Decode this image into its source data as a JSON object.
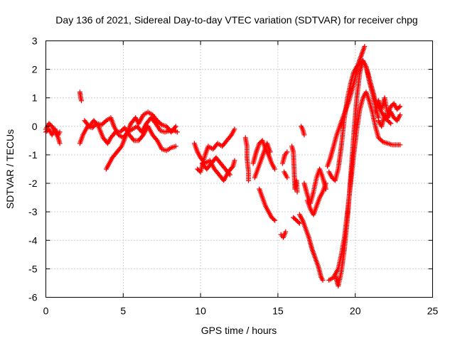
{
  "chart_data": {
    "type": "scatter",
    "title": "Day 136 of 2021, Sidereal Day-to-day VTEC variation (SDTVAR) for receiver chpg",
    "xlabel": "GPS time / hours",
    "ylabel": "SDTVAR / TECUs",
    "xlim": [
      0,
      25
    ],
    "ylim": [
      -6,
      3
    ],
    "xticks": [
      "0",
      "5",
      "10",
      "15",
      "20",
      "25"
    ],
    "yticks": [
      "-6",
      "-5",
      "-4",
      "-3",
      "-2",
      "-1",
      "0",
      "1",
      "2",
      "3"
    ],
    "grid": true,
    "marker": "+",
    "color": "#ff0000",
    "series": [
      {
        "name": "s1",
        "points": [
          [
            0.0,
            -0.1
          ],
          [
            0.2,
            0.1
          ],
          [
            0.4,
            0.0
          ],
          [
            0.6,
            -0.2
          ],
          [
            0.8,
            -0.4
          ],
          [
            0.9,
            -0.6
          ]
        ]
      },
      {
        "name": "s2",
        "points": [
          [
            0.0,
            -0.2
          ],
          [
            0.2,
            -0.1
          ],
          [
            0.4,
            -0.3
          ],
          [
            0.6,
            -0.1
          ],
          [
            0.8,
            -0.3
          ],
          [
            0.9,
            -0.2
          ]
        ]
      },
      {
        "name": "s3",
        "points": [
          [
            2.2,
            1.2
          ],
          [
            2.25,
            1.0
          ],
          [
            2.3,
            0.9
          ]
        ]
      },
      {
        "name": "s4",
        "points": [
          [
            2.2,
            -0.6
          ],
          [
            2.4,
            -0.3
          ],
          [
            2.7,
            0.0
          ],
          [
            3.0,
            -0.05
          ],
          [
            3.3,
            0.1
          ],
          [
            3.6,
            0.05
          ],
          [
            3.9,
            0.2
          ],
          [
            4.2,
            0.3
          ],
          [
            4.4,
            0.0
          ],
          [
            4.7,
            -0.3
          ],
          [
            5.0,
            -0.4
          ],
          [
            5.3,
            -0.2
          ],
          [
            5.6,
            -0.1
          ],
          [
            5.9,
            0.0
          ],
          [
            6.2,
            -0.2
          ],
          [
            6.5,
            0.1
          ],
          [
            6.8,
            0.3
          ],
          [
            7.1,
            0.1
          ],
          [
            7.4,
            -0.15
          ],
          [
            7.7,
            -0.2
          ],
          [
            8.0,
            -0.15
          ],
          [
            8.3,
            -0.15
          ],
          [
            8.5,
            -0.2
          ]
        ]
      },
      {
        "name": "s5",
        "points": [
          [
            2.5,
            0.2
          ],
          [
            2.8,
            0.0
          ],
          [
            3.1,
            0.2
          ],
          [
            3.4,
            0.0
          ],
          [
            3.7,
            -0.4
          ],
          [
            4.0,
            -0.6
          ],
          [
            4.2,
            -0.4
          ],
          [
            4.5,
            -0.2
          ],
          [
            4.8,
            -0.2
          ],
          [
            5.1,
            -0.05
          ],
          [
            5.4,
            -0.3
          ],
          [
            5.7,
            -0.5
          ],
          [
            6.0,
            -0.5
          ],
          [
            6.3,
            -0.3
          ],
          [
            6.6,
            0.0
          ],
          [
            6.9,
            -0.3
          ],
          [
            7.2,
            -0.5
          ],
          [
            7.5,
            -0.8
          ],
          [
            7.8,
            -0.85
          ],
          [
            8.1,
            -0.75
          ],
          [
            8.4,
            -0.7
          ]
        ]
      },
      {
        "name": "s6",
        "points": [
          [
            3.9,
            -1.5
          ],
          [
            4.1,
            -1.3
          ],
          [
            4.3,
            -1.1
          ],
          [
            4.6,
            -0.9
          ],
          [
            4.9,
            -0.7
          ],
          [
            5.2,
            -0.3
          ],
          [
            5.5,
            0.1
          ],
          [
            5.8,
            0.3
          ],
          [
            6.0,
            0.1
          ],
          [
            6.3,
            0.4
          ],
          [
            6.6,
            0.5
          ],
          [
            6.9,
            0.4
          ],
          [
            7.2,
            0.2
          ],
          [
            7.5,
            0.05
          ],
          [
            7.8,
            0.0
          ],
          [
            8.1,
            -0.2
          ],
          [
            8.4,
            0.0
          ]
        ]
      },
      {
        "name": "s7",
        "points": [
          [
            9.6,
            -0.6
          ],
          [
            9.8,
            -0.9
          ],
          [
            10.0,
            -1.1
          ],
          [
            10.3,
            -1.3
          ],
          [
            10.6,
            -1.2
          ],
          [
            10.9,
            -1.5
          ],
          [
            11.2,
            -1.7
          ],
          [
            11.5,
            -1.9
          ],
          [
            11.8,
            -1.6
          ],
          [
            12.1,
            -1.4
          ],
          [
            12.2,
            -1.2
          ]
        ]
      },
      {
        "name": "s8",
        "points": [
          [
            9.8,
            -1.5
          ],
          [
            10.0,
            -1.6
          ],
          [
            10.3,
            -1.0
          ],
          [
            10.5,
            -0.7
          ],
          [
            10.8,
            -0.8
          ],
          [
            11.1,
            -0.6
          ],
          [
            11.4,
            -0.7
          ],
          [
            11.7,
            -0.5
          ],
          [
            12.0,
            -0.3
          ],
          [
            12.2,
            -0.1
          ]
        ]
      },
      {
        "name": "s9",
        "points": [
          [
            10.1,
            -1.3
          ],
          [
            10.4,
            -1.5
          ],
          [
            10.7,
            -1.3
          ],
          [
            11.0,
            -1.1
          ],
          [
            11.3,
            -1.3
          ],
          [
            11.6,
            -1.5
          ],
          [
            11.9,
            -1.7
          ]
        ]
      },
      {
        "name": "s10",
        "points": [
          [
            12.9,
            -0.4
          ],
          [
            13.0,
            -0.7
          ],
          [
            13.0,
            -1.1
          ],
          [
            13.1,
            -1.6
          ],
          [
            13.1,
            -1.9
          ]
        ]
      },
      {
        "name": "s11",
        "points": [
          [
            13.4,
            -1.3
          ],
          [
            13.6,
            -0.9
          ],
          [
            13.8,
            -0.6
          ],
          [
            14.0,
            -0.5
          ],
          [
            14.2,
            -0.8
          ],
          [
            14.4,
            -1.0
          ],
          [
            14.6,
            -1.3
          ],
          [
            14.8,
            -1.5
          ]
        ]
      },
      {
        "name": "s12",
        "points": [
          [
            13.5,
            -1.8
          ],
          [
            13.7,
            -1.5
          ],
          [
            13.9,
            -1.2
          ],
          [
            14.1,
            -0.9
          ],
          [
            14.3,
            -0.6
          ],
          [
            14.5,
            -0.9
          ]
        ]
      },
      {
        "name": "s13",
        "points": [
          [
            13.8,
            -2.2
          ],
          [
            14.0,
            -2.5
          ],
          [
            14.2,
            -2.8
          ],
          [
            14.4,
            -3.0
          ],
          [
            14.6,
            -3.2
          ],
          [
            14.8,
            -3.3
          ]
        ]
      },
      {
        "name": "s14",
        "points": [
          [
            15.2,
            -3.8
          ],
          [
            15.35,
            -3.9
          ],
          [
            15.5,
            -3.7
          ]
        ]
      },
      {
        "name": "s15",
        "points": [
          [
            15.3,
            -1.3
          ],
          [
            15.45,
            -1.0
          ],
          [
            15.6,
            -0.9
          ]
        ]
      },
      {
        "name": "s16",
        "points": [
          [
            15.4,
            -1.6
          ],
          [
            15.6,
            -1.8
          ]
        ]
      },
      {
        "name": "s17",
        "points": [
          [
            15.9,
            -0.7
          ],
          [
            16.0,
            -0.9
          ],
          [
            16.1,
            -2.2
          ],
          [
            16.2,
            -1.9
          ],
          [
            16.25,
            -2.3
          ]
        ]
      },
      {
        "name": "s18",
        "points": [
          [
            16.0,
            -3.2
          ],
          [
            16.2,
            -3.3
          ],
          [
            16.4,
            -3.4
          ]
        ]
      },
      {
        "name": "s19",
        "points": [
          [
            16.4,
            -3.1
          ],
          [
            16.6,
            -3.3
          ],
          [
            16.8,
            -3.6
          ],
          [
            17.0,
            -3.9
          ],
          [
            17.2,
            -4.3
          ],
          [
            17.4,
            -4.6
          ],
          [
            17.6,
            -4.9
          ],
          [
            17.8,
            -5.3
          ],
          [
            17.9,
            -5.4
          ]
        ]
      },
      {
        "name": "s20",
        "points": [
          [
            16.5,
            0.0
          ],
          [
            16.6,
            -0.1
          ],
          [
            16.7,
            -0.3
          ]
        ]
      },
      {
        "name": "s21",
        "points": [
          [
            16.7,
            -2.0
          ],
          [
            16.9,
            -2.4
          ],
          [
            17.1,
            -2.7
          ],
          [
            17.3,
            -2.3
          ],
          [
            17.5,
            -1.8
          ],
          [
            17.7,
            -1.5
          ],
          [
            17.9,
            -1.8
          ],
          [
            18.1,
            -2.2
          ]
        ]
      },
      {
        "name": "s22",
        "points": [
          [
            16.9,
            -2.6
          ],
          [
            17.1,
            -2.9
          ],
          [
            17.3,
            -3.1
          ],
          [
            17.5,
            -2.8
          ],
          [
            17.7,
            -2.5
          ],
          [
            17.9,
            -2.3
          ],
          [
            18.1,
            -2.0
          ]
        ]
      },
      {
        "name": "s23",
        "points": [
          [
            18.2,
            -1.4
          ],
          [
            18.4,
            -1.1
          ],
          [
            18.6,
            -0.7
          ],
          [
            18.8,
            -0.3
          ],
          [
            19.0,
            0.0
          ],
          [
            19.2,
            0.3
          ],
          [
            19.4,
            0.6
          ],
          [
            19.6,
            0.9
          ],
          [
            19.8,
            1.3
          ],
          [
            20.0,
            1.7
          ],
          [
            20.2,
            2.2
          ],
          [
            20.4,
            2.5
          ],
          [
            20.6,
            2.8
          ]
        ]
      },
      {
        "name": "s24",
        "points": [
          [
            18.3,
            -1.6
          ],
          [
            18.5,
            -1.8
          ],
          [
            18.7,
            -1.9
          ],
          [
            18.9,
            -1.5
          ],
          [
            19.1,
            -0.7
          ],
          [
            19.3,
            0.3
          ],
          [
            19.5,
            1.0
          ],
          [
            19.7,
            1.5
          ],
          [
            19.9,
            1.9
          ],
          [
            20.1,
            2.1
          ],
          [
            20.3,
            2.2
          ],
          [
            20.5,
            2.3
          ],
          [
            20.7,
            2.1
          ],
          [
            20.9,
            1.6
          ],
          [
            21.1,
            1.2
          ],
          [
            21.3,
            0.7
          ],
          [
            21.5,
            0.3
          ]
        ]
      },
      {
        "name": "s25",
        "points": [
          [
            18.3,
            -5.4
          ],
          [
            18.6,
            -5.3
          ],
          [
            18.9,
            -5.0
          ],
          [
            19.1,
            -4.5
          ],
          [
            19.3,
            -3.9
          ],
          [
            19.5,
            -3.0
          ],
          [
            19.7,
            -2.0
          ],
          [
            19.9,
            -1.0
          ],
          [
            20.1,
            -0.1
          ],
          [
            20.3,
            0.6
          ],
          [
            20.5,
            1.0
          ],
          [
            20.7,
            1.2
          ],
          [
            20.9,
            0.9
          ],
          [
            21.1,
            0.5
          ],
          [
            21.3,
            0.0
          ],
          [
            21.5,
            -0.4
          ],
          [
            21.8,
            -0.55
          ],
          [
            22.1,
            -0.6
          ],
          [
            22.4,
            -0.65
          ],
          [
            22.7,
            -0.65
          ],
          [
            22.9,
            -0.65
          ]
        ]
      },
      {
        "name": "s26",
        "points": [
          [
            18.7,
            -5.2
          ],
          [
            18.9,
            -5.6
          ],
          [
            19.1,
            -5.1
          ],
          [
            19.3,
            -4.3
          ],
          [
            19.5,
            -3.2
          ],
          [
            19.7,
            -1.8
          ],
          [
            19.9,
            -0.3
          ],
          [
            20.1,
            1.0
          ],
          [
            20.3,
            1.9
          ],
          [
            20.5,
            2.3
          ],
          [
            20.7,
            2.1
          ],
          [
            20.9,
            1.7
          ],
          [
            21.1,
            1.3
          ],
          [
            21.3,
            0.9
          ],
          [
            21.5,
            0.7
          ],
          [
            21.7,
            0.5
          ],
          [
            21.9,
            0.3
          ],
          [
            22.1,
            0.2
          ],
          [
            22.3,
            0.1
          ]
        ]
      },
      {
        "name": "s27",
        "points": [
          [
            21.3,
            0.5
          ],
          [
            21.5,
            0.9
          ],
          [
            21.7,
            0.6
          ],
          [
            21.9,
            1.0
          ],
          [
            22.1,
            0.4
          ],
          [
            22.3,
            0.7
          ],
          [
            22.5,
            0.8
          ],
          [
            22.7,
            0.6
          ],
          [
            22.9,
            0.7
          ]
        ]
      },
      {
        "name": "s28",
        "points": [
          [
            21.5,
            0.2
          ],
          [
            21.7,
            0.0
          ],
          [
            21.9,
            0.4
          ],
          [
            22.1,
            0.3
          ],
          [
            22.3,
            0.5
          ],
          [
            22.5,
            0.3
          ],
          [
            22.7,
            0.2
          ],
          [
            22.9,
            0.4
          ]
        ]
      }
    ]
  }
}
